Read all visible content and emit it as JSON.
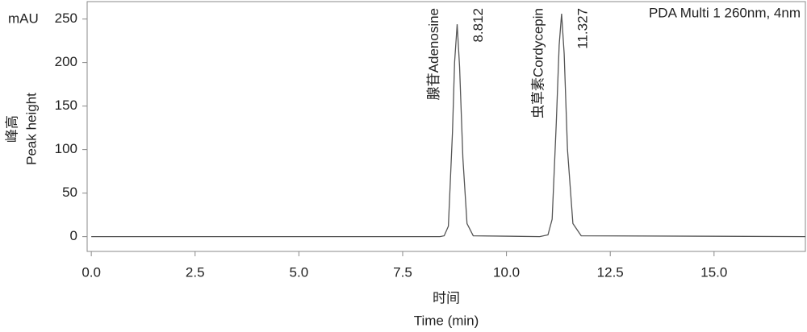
{
  "chart_data": {
    "type": "line",
    "legend_text": "PDA Multi 1 260nm, 4nm",
    "y_unit": "mAU",
    "ylabel_cn": "峰高",
    "ylabel": "Peak height",
    "xlabel_cn": "时间",
    "xlabel": "Time (min)",
    "xlim": [
      -0.1,
      17.2
    ],
    "ylim": [
      -17,
      270
    ],
    "xticks": [
      {
        "value": 0,
        "label": "0.0"
      },
      2.5,
      {
        "value": 5,
        "label": "5.0"
      },
      7.5,
      {
        "value": 10,
        "label": "10.0"
      },
      12.5,
      {
        "value": 15,
        "label": "15.0"
      }
    ],
    "yticks": [
      0,
      50,
      100,
      150,
      200,
      250
    ],
    "series": [
      {
        "color": "#555555",
        "x": [
          0,
          8.4,
          8.5,
          8.6,
          8.7,
          8.75,
          8.812,
          8.87,
          8.95,
          9.05,
          9.2,
          10.8,
          11.0,
          11.1,
          11.2,
          11.27,
          11.327,
          11.39,
          11.47,
          11.6,
          11.8,
          17.2
        ],
        "values": [
          0,
          0,
          1,
          12,
          120,
          200,
          244,
          195,
          90,
          15,
          1,
          0,
          2,
          20,
          130,
          220,
          256,
          210,
          100,
          15,
          1,
          0
        ]
      }
    ],
    "peaks": [
      {
        "label": "腺苷Adenosine",
        "time": 8.812
      },
      {
        "label": "虫草素Cordycepin",
        "time": 11.327
      }
    ]
  }
}
